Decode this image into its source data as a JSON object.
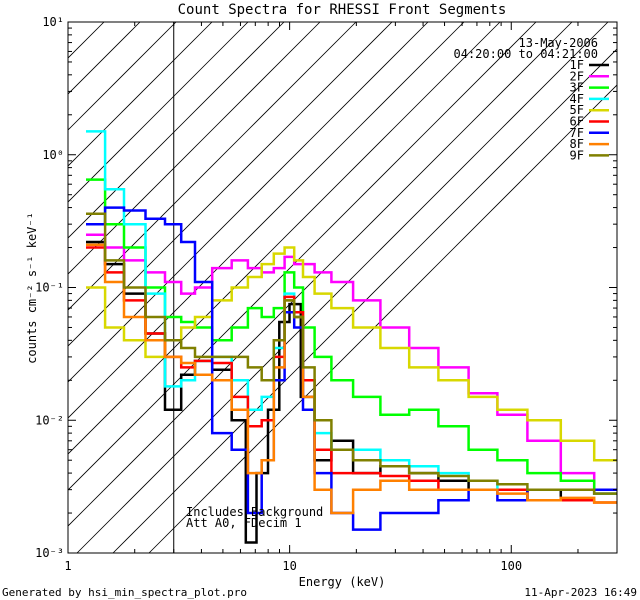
{
  "chart_data": {
    "type": "line",
    "title": "Count Spectra for RHESSI Front Segments",
    "xlabel": "Energy (keV)",
    "ylabel": "counts cm⁻² s⁻¹ keV⁻¹",
    "xscale": "log",
    "yscale": "log",
    "xlim": [
      1,
      300
    ],
    "ylim": [
      0.001,
      10
    ],
    "x_ticks": [
      "1",
      "10",
      "100"
    ],
    "y_ticks": [
      "10⁻³",
      "10⁻²",
      "10⁻¹",
      "10⁰",
      "10¹"
    ],
    "date": "13-May-2006",
    "time_range": "04:20:00 to 04:21:00",
    "note_lines": [
      "Includes Background",
      "Att A0, FDecim 1"
    ],
    "excluded_region_keV": [
      1,
      3
    ],
    "legend_position": "top-right",
    "series": [
      {
        "name": "1F",
        "color": "#000000",
        "x": [
          1.35,
          1.6,
          2.0,
          2.5,
          3.0,
          3.5,
          4.0,
          5.0,
          6.0,
          6.7,
          7.5,
          8.5,
          9.5,
          10.5,
          12.0,
          14.0,
          17.0,
          22.0,
          30.0,
          40.0,
          55.0,
          75.0,
          100.0,
          140.0,
          200.0,
          280.0
        ],
        "y": [
          0.22,
          0.15,
          0.09,
          0.045,
          0.012,
          0.022,
          0.028,
          0.024,
          0.01,
          0.0012,
          0.004,
          0.012,
          0.055,
          0.075,
          0.015,
          0.005,
          0.007,
          0.004,
          0.0045,
          0.004,
          0.0035,
          0.003,
          0.003,
          0.0025,
          0.003,
          0.0028
        ]
      },
      {
        "name": "2F",
        "color": "#ff00ff",
        "x": [
          1.35,
          1.6,
          2.0,
          2.5,
          3.0,
          3.5,
          4.0,
          5.0,
          6.0,
          7.0,
          8.0,
          9.0,
          10.0,
          11.0,
          12.0,
          14.0,
          17.0,
          22.0,
          30.0,
          40.0,
          55.0,
          75.0,
          100.0,
          140.0,
          200.0,
          280.0
        ],
        "y": [
          0.25,
          0.2,
          0.16,
          0.13,
          0.11,
          0.09,
          0.1,
          0.14,
          0.16,
          0.14,
          0.13,
          0.14,
          0.17,
          0.15,
          0.15,
          0.13,
          0.11,
          0.08,
          0.05,
          0.035,
          0.025,
          0.016,
          0.011,
          0.007,
          0.004,
          0.003
        ]
      },
      {
        "name": "3F",
        "color": "#00ff00",
        "x": [
          1.35,
          1.6,
          2.0,
          2.5,
          3.0,
          3.5,
          4.0,
          5.0,
          6.0,
          7.0,
          8.0,
          9.0,
          10.0,
          11.0,
          12.0,
          14.0,
          17.0,
          22.0,
          30.0,
          40.0,
          55.0,
          75.0,
          100.0,
          140.0,
          200.0,
          280.0
        ],
        "y": [
          0.65,
          0.3,
          0.2,
          0.1,
          0.06,
          0.055,
          0.05,
          0.04,
          0.05,
          0.07,
          0.06,
          0.07,
          0.13,
          0.1,
          0.05,
          0.03,
          0.02,
          0.015,
          0.011,
          0.012,
          0.009,
          0.006,
          0.005,
          0.004,
          0.0035,
          0.003
        ]
      },
      {
        "name": "4F",
        "color": "#00ffff",
        "x": [
          1.35,
          1.6,
          2.0,
          2.5,
          3.0,
          3.5,
          4.0,
          5.0,
          6.0,
          7.0,
          8.0,
          9.0,
          10.0,
          11.0,
          12.0,
          14.0,
          17.0,
          22.0,
          30.0,
          40.0,
          55.0,
          75.0,
          100.0,
          140.0,
          200.0,
          280.0
        ],
        "y": [
          1.5,
          0.55,
          0.3,
          0.09,
          0.018,
          0.02,
          0.028,
          0.03,
          0.02,
          0.012,
          0.015,
          0.035,
          0.09,
          0.06,
          0.02,
          0.008,
          0.006,
          0.006,
          0.005,
          0.0045,
          0.004,
          0.0035,
          0.003,
          0.003,
          0.003,
          0.0028
        ]
      },
      {
        "name": "5F",
        "color": "#d8d800",
        "x": [
          1.35,
          1.6,
          2.0,
          2.5,
          3.0,
          3.5,
          4.0,
          5.0,
          6.0,
          7.0,
          8.0,
          9.0,
          10.0,
          11.0,
          12.0,
          14.0,
          17.0,
          22.0,
          30.0,
          40.0,
          55.0,
          75.0,
          100.0,
          140.0,
          200.0,
          280.0
        ],
        "y": [
          0.1,
          0.05,
          0.04,
          0.03,
          0.04,
          0.05,
          0.06,
          0.08,
          0.1,
          0.12,
          0.15,
          0.18,
          0.2,
          0.16,
          0.12,
          0.09,
          0.07,
          0.05,
          0.035,
          0.025,
          0.02,
          0.015,
          0.012,
          0.01,
          0.007,
          0.005
        ]
      },
      {
        "name": "6F",
        "color": "#ff0000",
        "x": [
          1.35,
          1.6,
          2.0,
          2.5,
          3.0,
          3.5,
          4.0,
          5.0,
          6.0,
          7.0,
          8.0,
          9.0,
          10.0,
          11.0,
          12.0,
          14.0,
          17.0,
          22.0,
          30.0,
          40.0,
          55.0,
          75.0,
          100.0,
          140.0,
          200.0,
          280.0
        ],
        "y": [
          0.2,
          0.13,
          0.08,
          0.045,
          0.03,
          0.025,
          0.028,
          0.027,
          0.015,
          0.009,
          0.01,
          0.03,
          0.085,
          0.065,
          0.02,
          0.006,
          0.004,
          0.004,
          0.0038,
          0.0035,
          0.003,
          0.003,
          0.003,
          0.0025,
          0.0025,
          0.0024
        ]
      },
      {
        "name": "7F",
        "color": "#0000ff",
        "x": [
          1.35,
          1.6,
          2.0,
          2.5,
          3.0,
          3.5,
          4.0,
          5.0,
          6.0,
          7.0,
          8.0,
          9.0,
          10.0,
          11.0,
          12.0,
          14.0,
          17.0,
          22.0,
          30.0,
          40.0,
          55.0,
          75.0,
          100.0,
          140.0,
          200.0,
          280.0
        ],
        "y": [
          0.3,
          0.4,
          0.38,
          0.33,
          0.3,
          0.22,
          0.11,
          0.008,
          0.006,
          0.002,
          0.005,
          0.02,
          0.065,
          0.05,
          0.012,
          0.004,
          0.002,
          0.0015,
          0.002,
          0.002,
          0.0025,
          0.003,
          0.0025,
          0.003,
          0.003,
          0.003
        ]
      },
      {
        "name": "8F",
        "color": "#ff8000",
        "x": [
          1.35,
          1.6,
          2.0,
          2.5,
          3.0,
          3.5,
          4.0,
          5.0,
          6.0,
          7.0,
          8.0,
          9.0,
          10.0,
          11.0,
          12.0,
          14.0,
          17.0,
          22.0,
          30.0,
          40.0,
          55.0,
          75.0,
          100.0,
          140.0,
          200.0,
          280.0
        ],
        "y": [
          0.21,
          0.11,
          0.06,
          0.04,
          0.03,
          0.027,
          0.022,
          0.02,
          0.012,
          0.004,
          0.005,
          0.025,
          0.08,
          0.06,
          0.015,
          0.003,
          0.002,
          0.003,
          0.0035,
          0.003,
          0.003,
          0.003,
          0.0028,
          0.0025,
          0.0026,
          0.0024
        ]
      },
      {
        "name": "9F",
        "color": "#808000",
        "x": [
          1.35,
          1.6,
          2.0,
          2.5,
          3.0,
          3.5,
          4.0,
          5.0,
          6.0,
          7.0,
          8.0,
          9.0,
          10.0,
          11.0,
          12.0,
          14.0,
          17.0,
          22.0,
          30.0,
          40.0,
          55.0,
          75.0,
          100.0,
          140.0,
          200.0,
          280.0
        ],
        "y": [
          0.36,
          0.16,
          0.1,
          0.06,
          0.04,
          0.035,
          0.03,
          0.03,
          0.03,
          0.025,
          0.02,
          0.04,
          0.08,
          0.06,
          0.025,
          0.01,
          0.006,
          0.005,
          0.0045,
          0.004,
          0.0038,
          0.0035,
          0.0033,
          0.003,
          0.003,
          0.0028
        ]
      }
    ]
  },
  "footer": {
    "left": "Generated by hsi_min_spectra_plot.pro",
    "right": "11-Apr-2023 16:49"
  }
}
